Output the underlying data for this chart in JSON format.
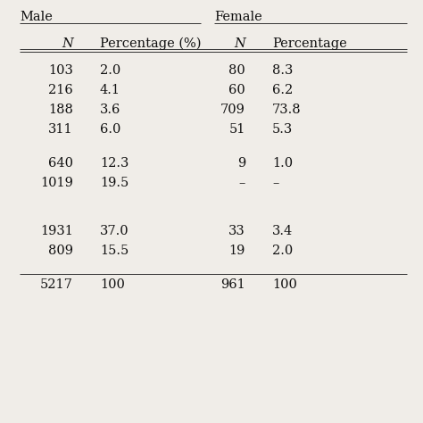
{
  "col_headers_row1": [
    "Male",
    "Female"
  ],
  "col_headers_row2": [
    "N",
    "Percentage (%)",
    "N",
    "Percentage"
  ],
  "rows": [
    [
      "103",
      "2.0",
      "80",
      "8.3"
    ],
    [
      "216",
      "4.1",
      "60",
      "6.2"
    ],
    [
      "188",
      "3.6",
      "709",
      "73.8"
    ],
    [
      "311",
      "6.0",
      "51",
      "5.3"
    ],
    [
      "",
      "",
      "",
      ""
    ],
    [
      "640",
      "12.3",
      "9",
      "1.0"
    ],
    [
      "1019",
      "19.5",
      "–",
      "–"
    ],
    [
      "",
      "",
      "",
      ""
    ],
    [
      "",
      "",
      "",
      ""
    ],
    [
      "1931",
      "37.0",
      "33",
      "3.4"
    ],
    [
      "809",
      "15.5",
      "19",
      "2.0"
    ],
    [
      "",
      "",
      "",
      ""
    ],
    [
      "5217",
      "100",
      "961",
      "100"
    ]
  ],
  "background_color": "#f0ede8",
  "text_color": "#111111",
  "fontsize": 10.5,
  "header_fontsize": 10.5,
  "line_color": "#333333"
}
